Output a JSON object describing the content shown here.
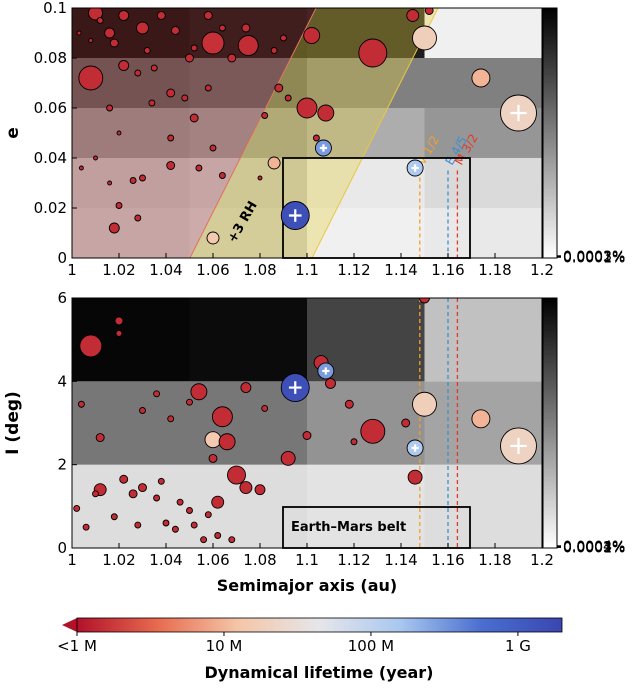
{
  "chart_data": [
    {
      "type": "scatter",
      "panel": "top",
      "xlabel": "",
      "ylabel": "e",
      "xlim": [
        1.0,
        1.2
      ],
      "ylim": [
        0.0,
        0.1
      ],
      "x_ticks": [
        "1",
        "1.02",
        "1.04",
        "1.06",
        "1.08",
        "1.1",
        "1.12",
        "1.14",
        "1.16",
        "1.18",
        "1.2"
      ],
      "y_ticks": [
        "0",
        "0.02",
        "0.04",
        "0.06",
        "0.08",
        "0.1"
      ],
      "colorbar": {
        "ticks": [
          "0.0001%",
          "0.0002%",
          "0.0003%"
        ],
        "max": 0.00034
      },
      "density_grid": {
        "x_edges": [
          1.0,
          1.05,
          1.1,
          1.15,
          1.2
        ],
        "y_edges": [
          0.0,
          0.02,
          0.04,
          0.06,
          0.08,
          0.1
        ],
        "values": [
          [
            8e-05,
            7e-05,
            2e-05,
            3e-05
          ],
          [
            9e-05,
            8e-05,
            3e-05,
            5e-05
          ],
          [
            0.00015,
            0.00014,
            0.00011,
            0.00014
          ],
          [
            0.00022,
            0.00021,
            0.00017,
            0.00017
          ],
          [
            0.00032,
            0.00031,
            0.0003,
            2e-05
          ]
        ]
      },
      "annotations": {
        "hill_label": "+3 RH",
        "resonances": [
          {
            "label": "V 1/2",
            "a": 1.148,
            "color": "#f0a030"
          },
          {
            "label": "E 4/5",
            "a": 1.16,
            "color": "#3c8fd0"
          },
          {
            "label": "M 3/2",
            "a": 1.164,
            "color": "#e03a2c"
          }
        ],
        "belt_box": {
          "a": [
            1.09,
            1.17
          ],
          "e": [
            0.0,
            0.04
          ]
        }
      },
      "points": [
        {
          "a": 1.01,
          "e": 0.098,
          "size": 7,
          "t": 0.05
        },
        {
          "a": 1.022,
          "e": 0.097,
          "size": 5,
          "t": 0.05
        },
        {
          "a": 1.016,
          "e": 0.09,
          "size": 5,
          "t": 0.05
        },
        {
          "a": 1.018,
          "e": 0.086,
          "size": 4,
          "t": 0.05
        },
        {
          "a": 1.012,
          "e": 0.095,
          "size": 3,
          "t": 0.05
        },
        {
          "a": 1.03,
          "e": 0.092,
          "size": 6,
          "t": 0.05
        },
        {
          "a": 1.038,
          "e": 0.097,
          "size": 4,
          "t": 0.05
        },
        {
          "a": 1.044,
          "e": 0.091,
          "size": 4,
          "t": 0.05
        },
        {
          "a": 1.008,
          "e": 0.087,
          "size": 2,
          "t": 0.05
        },
        {
          "a": 1.003,
          "e": 0.09,
          "size": 2,
          "t": 0.05
        },
        {
          "a": 1.032,
          "e": 0.083,
          "size": 3,
          "t": 0.05
        },
        {
          "a": 1.028,
          "e": 0.074,
          "size": 3,
          "t": 0.05
        },
        {
          "a": 1.035,
          "e": 0.076,
          "size": 3,
          "t": 0.05
        },
        {
          "a": 1.05,
          "e": 0.08,
          "size": 4,
          "t": 0.05
        },
        {
          "a": 1.052,
          "e": 0.084,
          "size": 3,
          "t": 0.05
        },
        {
          "a": 1.058,
          "e": 0.097,
          "size": 4,
          "t": 0.05
        },
        {
          "a": 1.064,
          "e": 0.092,
          "size": 3,
          "t": 0.05
        },
        {
          "a": 1.074,
          "e": 0.092,
          "size": 4,
          "t": 0.05
        },
        {
          "a": 1.086,
          "e": 0.083,
          "size": 3,
          "t": 0.05
        },
        {
          "a": 1.09,
          "e": 0.088,
          "size": 3,
          "t": 0.05
        },
        {
          "a": 1.06,
          "e": 0.086,
          "size": 11,
          "t": 0.06
        },
        {
          "a": 1.075,
          "e": 0.085,
          "size": 10,
          "t": 0.05
        },
        {
          "a": 1.068,
          "e": 0.08,
          "size": 4,
          "t": 0.05
        },
        {
          "a": 1.102,
          "e": 0.089,
          "size": 8,
          "t": 0.05
        },
        {
          "a": 1.128,
          "e": 0.082,
          "size": 14,
          "t": 0.05
        },
        {
          "a": 1.145,
          "e": 0.097,
          "size": 6,
          "t": 0.05
        },
        {
          "a": 1.152,
          "e": 0.099,
          "size": 4,
          "t": 0.05
        },
        {
          "a": 1.008,
          "e": 0.072,
          "size": 12,
          "t": 0.05
        },
        {
          "a": 1.022,
          "e": 0.077,
          "size": 5,
          "t": 0.05
        },
        {
          "a": 1.042,
          "e": 0.066,
          "size": 4,
          "t": 0.05
        },
        {
          "a": 1.048,
          "e": 0.064,
          "size": 3,
          "t": 0.05
        },
        {
          "a": 1.058,
          "e": 0.068,
          "size": 3,
          "t": 0.05
        },
        {
          "a": 1.088,
          "e": 0.068,
          "size": 4,
          "t": 0.05
        },
        {
          "a": 1.092,
          "e": 0.064,
          "size": 3,
          "t": 0.05
        },
        {
          "a": 1.034,
          "e": 0.062,
          "size": 3,
          "t": 0.05
        },
        {
          "a": 1.052,
          "e": 0.056,
          "size": 4,
          "t": 0.05
        },
        {
          "a": 1.016,
          "e": 0.06,
          "size": 3,
          "t": 0.05
        },
        {
          "a": 1.082,
          "e": 0.057,
          "size": 3,
          "t": 0.05
        },
        {
          "a": 1.1,
          "e": 0.06,
          "size": 10,
          "t": 0.05
        },
        {
          "a": 1.108,
          "e": 0.058,
          "size": 8,
          "t": 0.05
        },
        {
          "a": 1.02,
          "e": 0.05,
          "size": 2,
          "t": 0.05
        },
        {
          "a": 1.042,
          "e": 0.048,
          "size": 3,
          "t": 0.05
        },
        {
          "a": 1.06,
          "e": 0.044,
          "size": 3,
          "t": 0.05
        },
        {
          "a": 1.104,
          "e": 0.048,
          "size": 3,
          "t": 0.05
        },
        {
          "a": 1.01,
          "e": 0.04,
          "size": 2,
          "t": 0.05
        },
        {
          "a": 1.004,
          "e": 0.036,
          "size": 2,
          "t": 0.05
        },
        {
          "a": 1.042,
          "e": 0.037,
          "size": 4,
          "t": 0.05
        },
        {
          "a": 1.026,
          "e": 0.031,
          "size": 3,
          "t": 0.05
        },
        {
          "a": 1.016,
          "e": 0.03,
          "size": 2,
          "t": 0.05
        },
        {
          "a": 1.03,
          "e": 0.032,
          "size": 3,
          "t": 0.05
        },
        {
          "a": 1.054,
          "e": 0.036,
          "size": 3,
          "t": 0.05
        },
        {
          "a": 1.064,
          "e": 0.033,
          "size": 3,
          "t": 0.05
        },
        {
          "a": 1.08,
          "e": 0.032,
          "size": 2,
          "t": 0.05
        },
        {
          "a": 1.086,
          "e": 0.038,
          "size": 6,
          "t": 0.3
        },
        {
          "a": 1.02,
          "e": 0.021,
          "size": 3,
          "t": 0.05
        },
        {
          "a": 1.028,
          "e": 0.016,
          "size": 3,
          "t": 0.05
        },
        {
          "a": 1.018,
          "e": 0.012,
          "size": 5,
          "t": 0.05
        },
        {
          "a": 1.06,
          "e": 0.008,
          "size": 6,
          "t": 0.35
        },
        {
          "a": 1.107,
          "e": 0.044,
          "size": 8,
          "t": 0.75,
          "plus": true
        },
        {
          "a": 1.146,
          "e": 0.036,
          "size": 8,
          "t": 0.65,
          "plus": true
        },
        {
          "a": 1.095,
          "e": 0.017,
          "size": 14,
          "t": 0.96,
          "plus": true
        },
        {
          "a": 1.15,
          "e": 0.088,
          "size": 12,
          "t": 0.38
        },
        {
          "a": 1.174,
          "e": 0.072,
          "size": 9,
          "t": 0.3
        },
        {
          "a": 1.19,
          "e": 0.058,
          "size": 18,
          "t": 0.4,
          "plus": true
        }
      ]
    },
    {
      "type": "scatter",
      "panel": "bottom",
      "xlabel": "Semimajor axis (au)",
      "ylabel": "I (deg)",
      "xlim": [
        1.0,
        1.2
      ],
      "ylim": [
        0,
        6
      ],
      "x_ticks": [
        "1",
        "1.02",
        "1.04",
        "1.06",
        "1.08",
        "1.1",
        "1.12",
        "1.14",
        "1.16",
        "1.18",
        "1.2"
      ],
      "y_ticks": [
        "0",
        "2",
        "4",
        "6"
      ],
      "colorbar": {
        "ticks": [
          "0.0001%",
          "0.0002%",
          "0.0003%",
          "0.0004%"
        ],
        "max": 0.00045
      },
      "density_grid": {
        "x_edges": [
          1.0,
          1.05,
          1.1,
          1.15,
          1.2
        ],
        "y_edges": [
          0,
          2,
          4,
          6
        ],
        "values": [
          [
            6e-05,
            6e-05,
            5e-05,
            6e-05
          ],
          [
            0.00024,
            0.00024,
            0.00019,
            0.00016
          ],
          [
            0.00044,
            0.00043,
            0.00033,
            0.00011
          ]
        ]
      },
      "annotations": {
        "resonances": [
          {
            "a": 1.148,
            "color": "#f0a030"
          },
          {
            "a": 1.16,
            "color": "#3c8fd0"
          },
          {
            "a": 1.164,
            "color": "#e03a2c"
          }
        ],
        "belt_box": {
          "a": [
            1.09,
            1.17
          ],
          "i": [
            0.0,
            1.0
          ],
          "label": "Earth–Mars belt"
        }
      },
      "points": [
        {
          "a": 1.008,
          "e": 4.85,
          "size": 11,
          "t": 0.05
        },
        {
          "a": 1.02,
          "e": 5.45,
          "size": 4,
          "t": 0.05
        },
        {
          "a": 1.02,
          "e": 5.15,
          "size": 3,
          "t": 0.05
        },
        {
          "a": 1.03,
          "e": 3.3,
          "size": 3,
          "t": 0.05
        },
        {
          "a": 1.036,
          "e": 3.7,
          "size": 3,
          "t": 0.05
        },
        {
          "a": 1.042,
          "e": 3.1,
          "size": 3,
          "t": 0.05
        },
        {
          "a": 1.05,
          "e": 3.5,
          "size": 3,
          "t": 0.05
        },
        {
          "a": 1.054,
          "e": 3.75,
          "size": 8,
          "t": 0.05
        },
        {
          "a": 1.064,
          "e": 3.15,
          "size": 10,
          "t": 0.05
        },
        {
          "a": 1.06,
          "e": 2.6,
          "size": 8,
          "t": 0.35
        },
        {
          "a": 1.066,
          "e": 2.55,
          "size": 8,
          "t": 0.05
        },
        {
          "a": 1.074,
          "e": 3.85,
          "size": 5,
          "t": 0.05
        },
        {
          "a": 1.082,
          "e": 3.35,
          "size": 3,
          "t": 0.05
        },
        {
          "a": 1.004,
          "e": 3.45,
          "size": 3,
          "t": 0.05
        },
        {
          "a": 1.012,
          "e": 2.65,
          "size": 4,
          "t": 0.05
        },
        {
          "a": 1.06,
          "e": 2.15,
          "size": 4,
          "t": 0.05
        },
        {
          "a": 1.07,
          "e": 1.75,
          "size": 9,
          "t": 0.05
        },
        {
          "a": 1.074,
          "e": 1.45,
          "size": 6,
          "t": 0.05
        },
        {
          "a": 1.08,
          "e": 1.4,
          "size": 5,
          "t": 0.05
        },
        {
          "a": 1.092,
          "e": 2.15,
          "size": 7,
          "t": 0.05
        },
        {
          "a": 1.1,
          "e": 2.7,
          "size": 4,
          "t": 0.05
        },
        {
          "a": 1.106,
          "e": 4.45,
          "size": 7,
          "t": 0.05
        },
        {
          "a": 1.11,
          "e": 3.95,
          "size": 5,
          "t": 0.05
        },
        {
          "a": 1.118,
          "e": 3.45,
          "size": 4,
          "t": 0.05
        },
        {
          "a": 1.12,
          "e": 2.55,
          "size": 3,
          "t": 0.05
        },
        {
          "a": 1.128,
          "e": 2.8,
          "size": 12,
          "t": 0.05
        },
        {
          "a": 1.142,
          "e": 3.0,
          "size": 4,
          "t": 0.05
        },
        {
          "a": 1.146,
          "e": 1.7,
          "size": 7,
          "t": 0.05
        },
        {
          "a": 1.15,
          "e": 6.0,
          "size": 5,
          "t": 0.05
        },
        {
          "a": 1.012,
          "e": 1.4,
          "size": 6,
          "t": 0.05
        },
        {
          "a": 1.01,
          "e": 1.3,
          "size": 3,
          "t": 0.05
        },
        {
          "a": 1.022,
          "e": 1.65,
          "size": 4,
          "t": 0.05
        },
        {
          "a": 1.026,
          "e": 1.3,
          "size": 4,
          "t": 0.05
        },
        {
          "a": 1.03,
          "e": 1.45,
          "size": 4,
          "t": 0.05
        },
        {
          "a": 1.036,
          "e": 1.2,
          "size": 3,
          "t": 0.05
        },
        {
          "a": 1.038,
          "e": 1.6,
          "size": 3,
          "t": 0.05
        },
        {
          "a": 1.046,
          "e": 1.1,
          "size": 3,
          "t": 0.05
        },
        {
          "a": 1.05,
          "e": 0.9,
          "size": 3,
          "t": 0.05
        },
        {
          "a": 1.058,
          "e": 0.8,
          "size": 3,
          "t": 0.05
        },
        {
          "a": 1.062,
          "e": 1.1,
          "size": 6,
          "t": 0.05
        },
        {
          "a": 1.002,
          "e": 0.95,
          "size": 3,
          "t": 0.05
        },
        {
          "a": 1.006,
          "e": 0.5,
          "size": 3,
          "t": 0.05
        },
        {
          "a": 1.018,
          "e": 0.75,
          "size": 3,
          "t": 0.05
        },
        {
          "a": 1.028,
          "e": 0.55,
          "size": 3,
          "t": 0.05
        },
        {
          "a": 1.04,
          "e": 0.6,
          "size": 3,
          "t": 0.05
        },
        {
          "a": 1.044,
          "e": 0.45,
          "size": 3,
          "t": 0.05
        },
        {
          "a": 1.052,
          "e": 0.55,
          "size": 3,
          "t": 0.05
        },
        {
          "a": 1.056,
          "e": 0.2,
          "size": 3,
          "t": 0.05
        },
        {
          "a": 1.062,
          "e": 0.3,
          "size": 3,
          "t": 0.05
        },
        {
          "a": 1.068,
          "e": 0.2,
          "size": 3,
          "t": 0.05
        },
        {
          "a": 1.095,
          "e": 3.85,
          "size": 14,
          "t": 0.96,
          "plus": true
        },
        {
          "a": 1.108,
          "e": 4.25,
          "size": 8,
          "t": 0.75,
          "plus": true
        },
        {
          "a": 1.146,
          "e": 2.4,
          "size": 8,
          "t": 0.65,
          "plus": true
        },
        {
          "a": 1.15,
          "e": 3.45,
          "size": 12,
          "t": 0.38
        },
        {
          "a": 1.174,
          "e": 3.1,
          "size": 9,
          "t": 0.3
        },
        {
          "a": 1.19,
          "e": 2.45,
          "size": 18,
          "t": 0.4,
          "plus": true
        }
      ]
    }
  ],
  "lifetime_colorbar": {
    "label": "Dynamical lifetime (year)",
    "ticks": [
      "<1 M",
      "10 M",
      "100 M",
      "1 G"
    ],
    "colors": [
      "#b2112a",
      "#e86b4f",
      "#f4c6a8",
      "#e6e6ea",
      "#a9c7ef",
      "#4a6fd0",
      "#3a46b0"
    ]
  }
}
